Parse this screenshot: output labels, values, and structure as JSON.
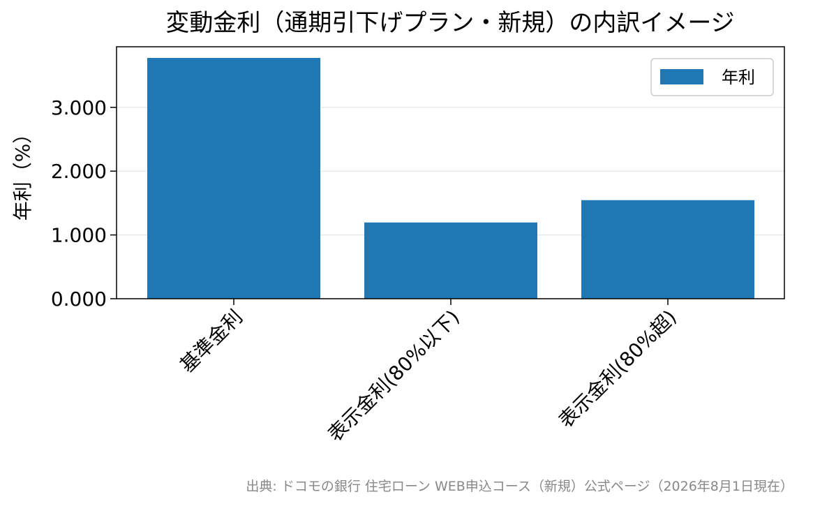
{
  "chart_data": {
    "type": "bar",
    "title": "変動金利（通期引下げプラン・新規）の内訳イメージ",
    "categories": [
      "基準金利",
      "表示金利(80%以下)",
      "表示金利(80%超)"
    ],
    "series": [
      {
        "name": "年利",
        "values": [
          3.775,
          1.195,
          1.545
        ]
      }
    ],
    "xlabel": "",
    "ylabel": "年利（%）",
    "ylim": [
      0,
      3.95
    ],
    "yticks": [
      "0.000",
      "1.000",
      "2.000",
      "3.000"
    ],
    "ytick_values": [
      0,
      1,
      2,
      3
    ],
    "grid": "y",
    "legend": "top-right",
    "colors": {
      "bar": "#1f77b4",
      "grid": "#e6e6e6",
      "source_text": "#888888"
    }
  },
  "source_note": "出典: ドコモの銀行 住宅ローン WEB申込コース（新規）公式ページ（2026年8月1日現在）"
}
